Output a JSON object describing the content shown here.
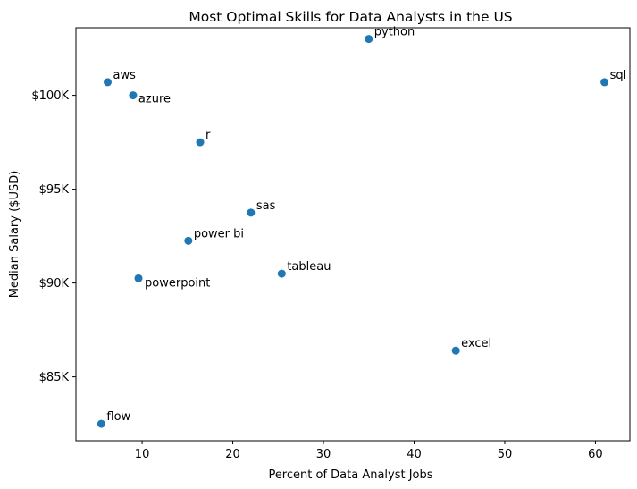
{
  "chart_data": {
    "type": "scatter",
    "title": "Most Optimal Skills for Data Analysts in the US",
    "xlabel": "Percent of Data Analyst Jobs",
    "ylabel": "Median Salary ($USD)",
    "xlim": [
      2.7,
      63.8
    ],
    "ylim": [
      81600,
      103600
    ],
    "x_ticks": [
      10,
      20,
      30,
      40,
      50,
      60
    ],
    "y_ticks": [
      {
        "value": 85000,
        "label": "$85K"
      },
      {
        "value": 90000,
        "label": "$90K"
      },
      {
        "value": 95000,
        "label": "$95K"
      },
      {
        "value": 100000,
        "label": "$100K"
      }
    ],
    "grid": false,
    "marker_color": "#1f77b4",
    "points": [
      {
        "label": "python",
        "x": 35.0,
        "y": 103000
      },
      {
        "label": "sql",
        "x": 61.0,
        "y": 100700
      },
      {
        "label": "aws",
        "x": 6.2,
        "y": 100700
      },
      {
        "label": "azure",
        "x": 9.0,
        "y": 100000
      },
      {
        "label": "r",
        "x": 16.4,
        "y": 97500
      },
      {
        "label": "sas",
        "x": 22.0,
        "y": 93750
      },
      {
        "label": "power bi",
        "x": 15.1,
        "y": 92250
      },
      {
        "label": "tableau",
        "x": 25.4,
        "y": 90500
      },
      {
        "label": "powerpoint",
        "x": 9.6,
        "y": 90250
      },
      {
        "label": "excel",
        "x": 44.6,
        "y": 86400
      },
      {
        "label": "flow",
        "x": 5.5,
        "y": 82500
      }
    ]
  }
}
